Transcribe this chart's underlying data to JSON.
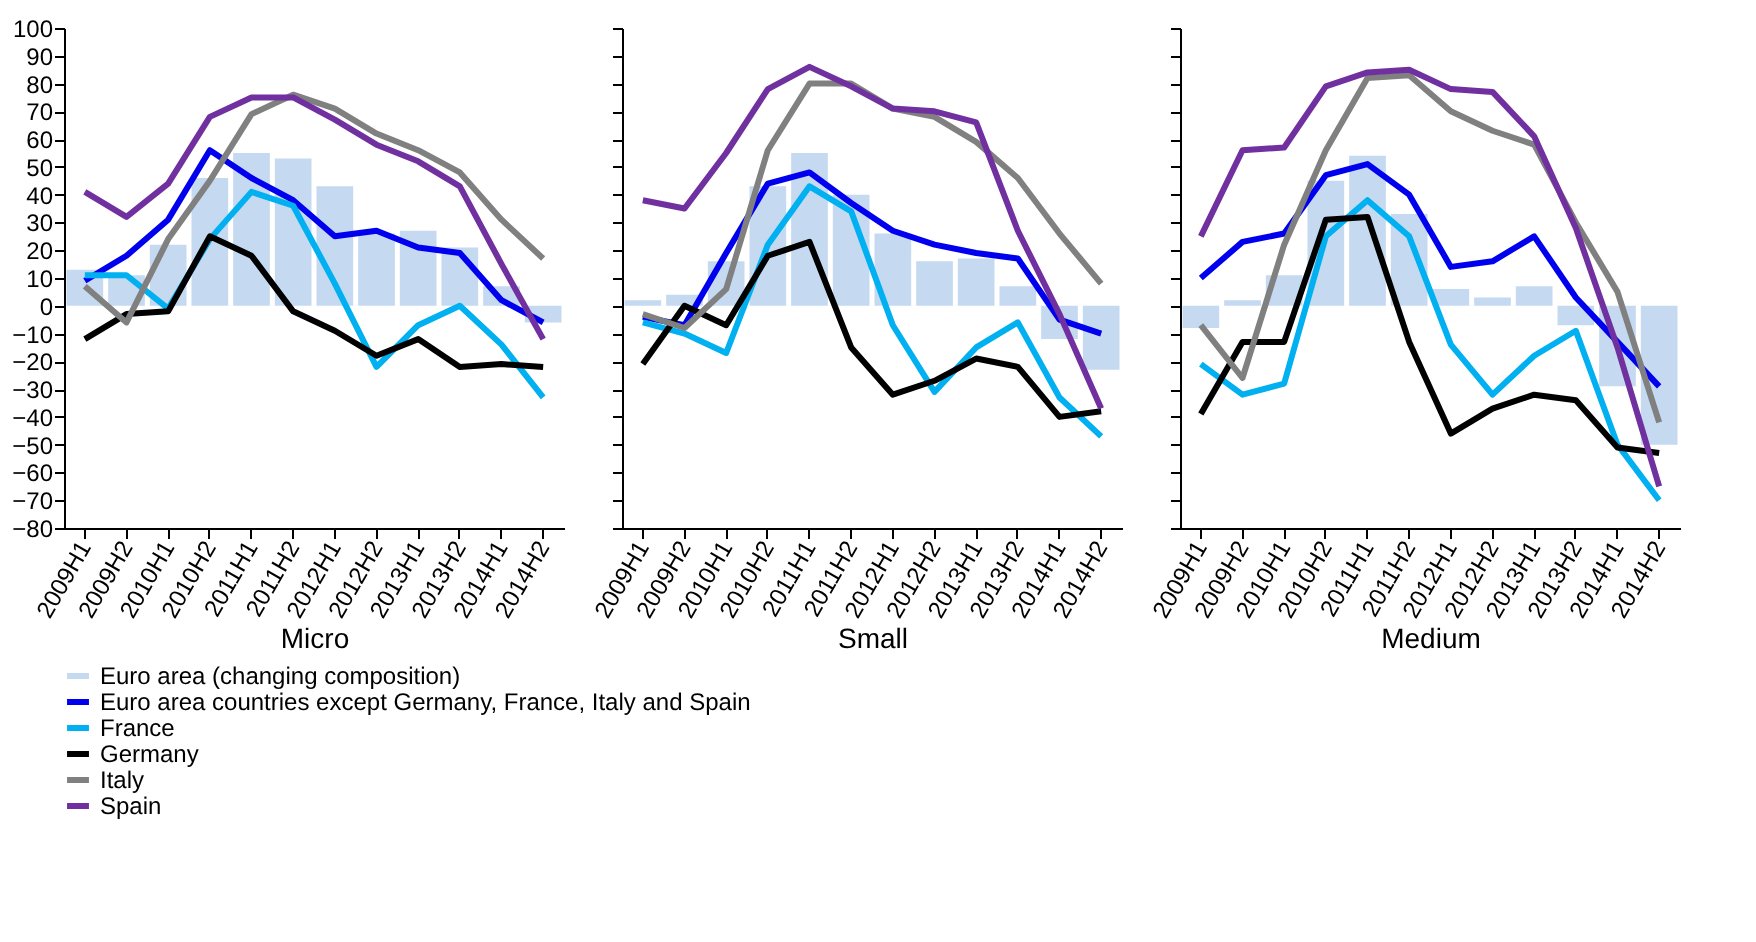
{
  "chart_data": [
    {
      "type": "bar",
      "xlabel": "Micro",
      "categories": [
        "2009H1",
        "2009H2",
        "2010H1",
        "2010H2",
        "2011H1",
        "2011H2",
        "2012H1",
        "2012H2",
        "2013H1",
        "2013H2",
        "2014H1",
        "2014H2"
      ],
      "ylim": [
        -80,
        100
      ],
      "yticks": [
        -80,
        -70,
        -60,
        -50,
        -40,
        -30,
        -20,
        -10,
        0,
        10,
        20,
        30,
        40,
        50,
        60,
        70,
        80,
        90,
        100
      ],
      "grid": false,
      "legend": "bottom",
      "series": [
        {
          "name": "Euro area (changing composition)",
          "color": "#c5d9f1",
          "values": [
            13,
            11,
            22,
            46,
            55,
            53,
            43,
            26,
            27,
            21,
            7,
            -6
          ]
        },
        {
          "name": "Euro area countries except Germany, France, Italy and Spain",
          "type": "line",
          "color": "#0000ee",
          "values": [
            9,
            18,
            31,
            56,
            46,
            38,
            25,
            27,
            21,
            19,
            2,
            -6
          ]
        },
        {
          "name": "France",
          "type": "line",
          "color": "#00b0f0",
          "values": [
            11,
            11,
            -1,
            24,
            41,
            36,
            8,
            -22,
            -7,
            0,
            -14,
            -33
          ]
        },
        {
          "name": "Germany",
          "type": "line",
          "color": "#000000",
          "values": [
            -12,
            -3,
            -2,
            25,
            18,
            -2,
            -9,
            -18,
            -12,
            -22,
            -21,
            -22
          ]
        },
        {
          "name": "Italy",
          "type": "line",
          "color": "#808080",
          "values": [
            7,
            -6,
            24,
            45,
            69,
            76,
            71,
            62,
            56,
            48,
            31,
            17
          ]
        },
        {
          "name": "Spain",
          "type": "line",
          "color": "#7030a0",
          "values": [
            41,
            32,
            44,
            68,
            75,
            75,
            67,
            58,
            52,
            43,
            15,
            -12
          ]
        }
      ]
    },
    {
      "type": "bar",
      "xlabel": "Small",
      "categories": [
        "2009H1",
        "2009H2",
        "2010H1",
        "2010H2",
        "2011H1",
        "2011H2",
        "2012H1",
        "2012H2",
        "2013H1",
        "2013H2",
        "2014H1",
        "2014H2"
      ],
      "ylim": [
        -80,
        100
      ],
      "yticks": [
        -80,
        -70,
        -60,
        -50,
        -40,
        -30,
        -20,
        -10,
        0,
        10,
        20,
        30,
        40,
        50,
        60,
        70,
        80,
        90,
        100
      ],
      "grid": false,
      "legend": "bottom",
      "tick_labels": "x",
      "series": [
        {
          "name": "Euro area (changing composition)",
          "color": "#c5d9f1",
          "values": [
            2,
            4,
            16,
            43,
            55,
            40,
            26,
            16,
            17,
            7,
            -12,
            -23
          ]
        },
        {
          "name": "Euro area countries except Germany, France, Italy and Spain",
          "type": "line",
          "color": "#0000ee",
          "values": [
            -4,
            -7,
            19,
            44,
            48,
            37,
            27,
            22,
            19,
            17,
            -5,
            -10
          ]
        },
        {
          "name": "France",
          "type": "line",
          "color": "#00b0f0",
          "values": [
            -6,
            -10,
            -17,
            22,
            43,
            34,
            -7,
            -31,
            -15,
            -6,
            -33,
            -47
          ]
        },
        {
          "name": "Germany",
          "type": "line",
          "color": "#000000",
          "values": [
            -21,
            0,
            -7,
            18,
            23,
            -15,
            -32,
            -27,
            -19,
            -22,
            -40,
            -38
          ]
        },
        {
          "name": "Italy",
          "type": "line",
          "color": "#808080",
          "values": [
            -3,
            -8,
            6,
            56,
            80,
            80,
            71,
            68,
            59,
            46,
            26,
            8
          ]
        },
        {
          "name": "Spain",
          "type": "line",
          "color": "#7030a0",
          "values": [
            38,
            35,
            55,
            78,
            86,
            79,
            71,
            70,
            66,
            27,
            -3,
            -37
          ]
        }
      ]
    },
    {
      "type": "bar",
      "xlabel": "Medium",
      "categories": [
        "2009H1",
        "2009H2",
        "2010H1",
        "2010H2",
        "2011H1",
        "2011H2",
        "2012H1",
        "2012H2",
        "2013H1",
        "2013H2",
        "2014H1",
        "2014H2"
      ],
      "ylim": [
        -80,
        100
      ],
      "yticks": [
        -80,
        -70,
        -60,
        -50,
        -40,
        -30,
        -20,
        -10,
        0,
        10,
        20,
        30,
        40,
        50,
        60,
        70,
        80,
        90,
        100
      ],
      "grid": false,
      "legend": "bottom",
      "tick_labels": "x",
      "series": [
        {
          "name": "Euro area (changing composition)",
          "color": "#c5d9f1",
          "values": [
            -8,
            2,
            11,
            45,
            54,
            33,
            6,
            3,
            7,
            -7,
            -29,
            -50
          ]
        },
        {
          "name": "Euro area countries except Germany, France, Italy and Spain",
          "type": "line",
          "color": "#0000ee",
          "values": [
            10,
            23,
            26,
            47,
            51,
            40,
            14,
            16,
            25,
            3,
            -13,
            -29
          ]
        },
        {
          "name": "France",
          "type": "line",
          "color": "#00b0f0",
          "values": [
            -21,
            -32,
            -28,
            25,
            38,
            25,
            -14,
            -32,
            -18,
            -9,
            -50,
            -70
          ]
        },
        {
          "name": "Germany",
          "type": "line",
          "color": "#000000",
          "values": [
            -39,
            -13,
            -13,
            31,
            32,
            -13,
            -46,
            -37,
            -32,
            -34,
            -51,
            -53
          ]
        },
        {
          "name": "Italy",
          "type": "line",
          "color": "#808080",
          "values": [
            -7,
            -26,
            22,
            56,
            82,
            83,
            70,
            63,
            58,
            30,
            5,
            -42
          ]
        },
        {
          "name": "Spain",
          "type": "line",
          "color": "#7030a0",
          "values": [
            25,
            56,
            57,
            79,
            84,
            85,
            78,
            77,
            61,
            28,
            -15,
            -65
          ]
        }
      ]
    }
  ]
}
